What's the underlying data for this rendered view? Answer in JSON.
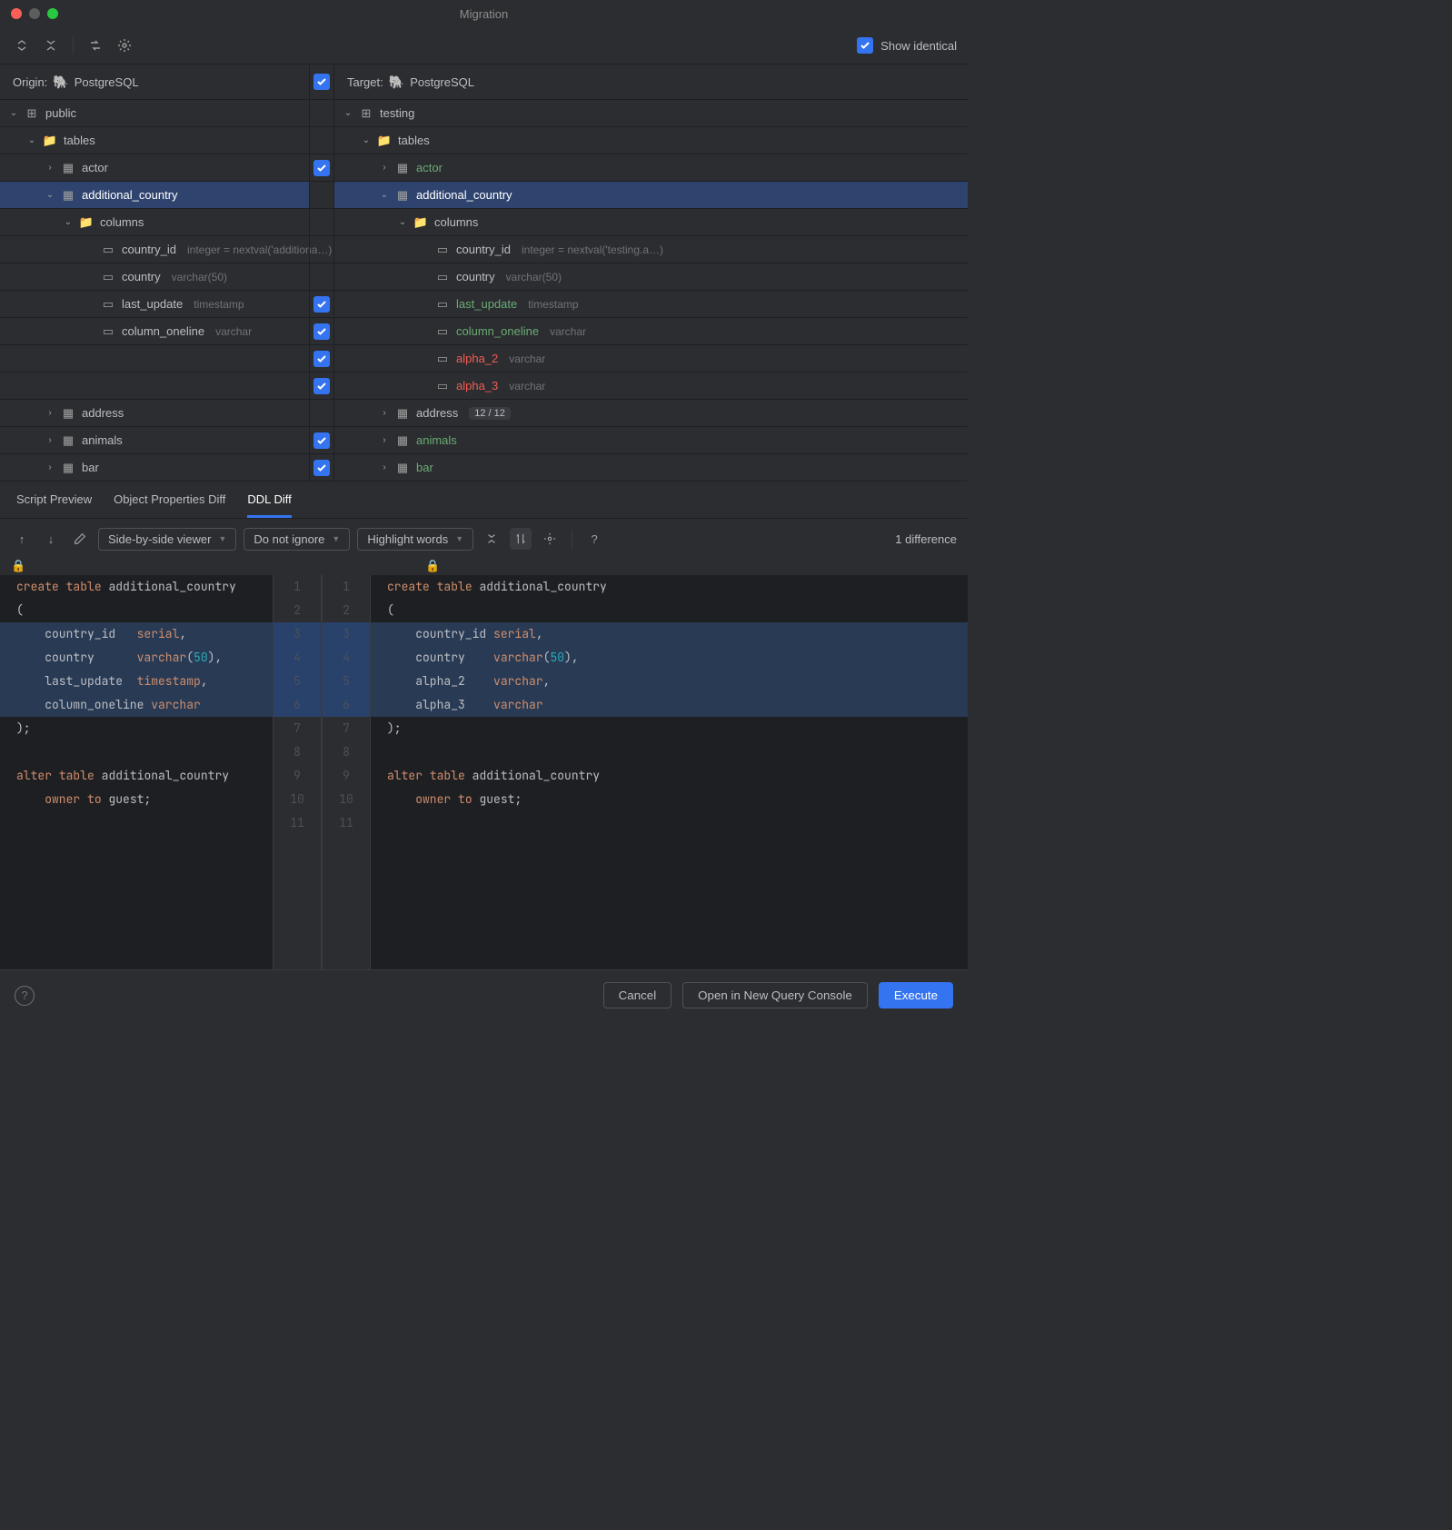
{
  "window_title": "Migration",
  "show_identical_label": "Show identical",
  "show_identical_checked": true,
  "origin": {
    "label": "Origin:",
    "db": "PostgreSQL"
  },
  "target": {
    "label": "Target:",
    "db": "PostgreSQL"
  },
  "tree_left": {
    "schema": "public",
    "tables_label": "tables",
    "rows": [
      {
        "k": "actor",
        "t": "table"
      },
      {
        "k": "additional_country",
        "t": "table",
        "sel": true
      },
      {
        "k": "columns",
        "t": "folder"
      },
      {
        "k": "country_id",
        "t": "col",
        "typ": "integer = nextval('additiona…)"
      },
      {
        "k": "country",
        "t": "col",
        "typ": "varchar(50)"
      },
      {
        "k": "last_update",
        "t": "col",
        "typ": "timestamp"
      },
      {
        "k": "column_oneline",
        "t": "col",
        "typ": "varchar"
      },
      {
        "k": "",
        "t": "blank"
      },
      {
        "k": "",
        "t": "blank"
      },
      {
        "k": "address",
        "t": "table"
      },
      {
        "k": "animals",
        "t": "table"
      },
      {
        "k": "bar",
        "t": "table"
      }
    ]
  },
  "tree_right": {
    "schema": "testing",
    "tables_label": "tables",
    "rows": [
      {
        "k": "actor",
        "t": "table",
        "cls": "added"
      },
      {
        "k": "additional_country",
        "t": "table",
        "sel": true
      },
      {
        "k": "columns",
        "t": "folder"
      },
      {
        "k": "country_id",
        "t": "col",
        "typ": "integer = nextval('testing.a…)"
      },
      {
        "k": "country",
        "t": "col",
        "typ": "varchar(50)"
      },
      {
        "k": "last_update",
        "t": "col",
        "typ": "timestamp",
        "cls": "added"
      },
      {
        "k": "column_oneline",
        "t": "col",
        "typ": "varchar",
        "cls": "added"
      },
      {
        "k": "alpha_2",
        "t": "col",
        "typ": "varchar",
        "cls": "removed"
      },
      {
        "k": "alpha_3",
        "t": "col",
        "typ": "varchar",
        "cls": "removed"
      },
      {
        "k": "address",
        "t": "table",
        "badge": "12 / 12"
      },
      {
        "k": "animals",
        "t": "table",
        "cls": "added"
      },
      {
        "k": "bar",
        "t": "table",
        "cls": "added"
      }
    ]
  },
  "mid_checks": [
    false,
    true,
    false,
    false,
    false,
    false,
    true,
    true,
    true,
    true,
    false,
    true,
    true
  ],
  "tabs": [
    "Script Preview",
    "Object Properties Diff",
    "DDL Diff"
  ],
  "active_tab": 2,
  "diff_toolbar": {
    "viewer_mode": "Side-by-side viewer",
    "ignore_mode": "Do not ignore",
    "highlight_mode": "Highlight words",
    "diff_count": "1 difference"
  },
  "code_left": [
    {
      "n": "1",
      "t": "create table additional_country",
      "plain": true,
      "kw": [
        "create",
        "table"
      ]
    },
    {
      "n": "2",
      "t": "("
    },
    {
      "n": "3",
      "t": "    country_id   serial,",
      "hl": true,
      "boxes": [
        [
          4,
          14
        ]
      ]
    },
    {
      "n": "4",
      "t": "    country      varchar(50),",
      "hl": true,
      "num": "50"
    },
    {
      "n": "5",
      "t": "    last_update  timestamp,",
      "hl": true
    },
    {
      "n": "6",
      "t": "    column_oneline varchar",
      "hl": true
    },
    {
      "n": "7",
      "t": ");"
    },
    {
      "n": "8",
      "t": ""
    },
    {
      "n": "9",
      "t": "alter table additional_country",
      "kw": [
        "alter",
        "table"
      ]
    },
    {
      "n": "10",
      "t": "    owner to guest;",
      "kw": [
        "owner",
        "to"
      ]
    },
    {
      "n": "11",
      "t": ""
    }
  ],
  "code_right": [
    {
      "n": "1",
      "t": "create table additional_country",
      "kw": [
        "create",
        "table"
      ]
    },
    {
      "n": "2",
      "t": "("
    },
    {
      "n": "3",
      "t": "    country_id serial,",
      "hl": true
    },
    {
      "n": "4",
      "t": "    country    varchar(50),",
      "hl": true,
      "num": "50"
    },
    {
      "n": "5",
      "t": "    alpha_2    varchar,",
      "hl": true
    },
    {
      "n": "6",
      "t": "    alpha_3    varchar",
      "hl": true
    },
    {
      "n": "7",
      "t": ");"
    },
    {
      "n": "8",
      "t": ""
    },
    {
      "n": "9",
      "t": "alter table additional_country",
      "kw": [
        "alter",
        "table"
      ]
    },
    {
      "n": "10",
      "t": "    owner to guest;",
      "kw": [
        "owner",
        "to"
      ]
    },
    {
      "n": "11",
      "t": ""
    }
  ],
  "footer": {
    "cancel": "Cancel",
    "open": "Open in New Query Console",
    "execute": "Execute"
  },
  "colors": {
    "kw": "#cf8e6d",
    "num": "#2aacb8",
    "added": "#6aab73",
    "removed": "#f25c54",
    "sel": "#2e436e"
  }
}
